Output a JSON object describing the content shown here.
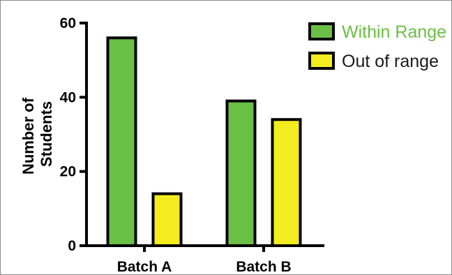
{
  "chart_data": {
    "type": "bar",
    "categories": [
      "Batch A",
      "Batch B"
    ],
    "series": [
      {
        "name": "Within Range",
        "color": "#6abf45",
        "values": [
          56,
          39
        ]
      },
      {
        "name": "Out of range",
        "color": "#f5ec1f",
        "values": [
          14,
          34
        ]
      }
    ],
    "ylabel_lines": [
      "Number of",
      "Students"
    ],
    "ylim": [
      0,
      60
    ],
    "yticks": [
      0,
      20,
      40,
      60
    ],
    "legend_position": "top-right",
    "grid": false
  }
}
